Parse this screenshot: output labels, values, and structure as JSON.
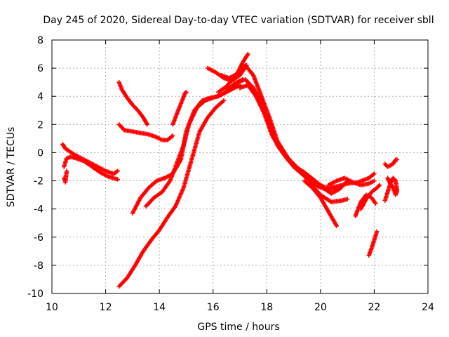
{
  "chart_data": {
    "type": "scatter",
    "title": "Day 245 of 2020, Sidereal Day-to-day VTEC variation (SDTVAR) for receiver sbll",
    "xlabel": "GPS time / hours",
    "ylabel": "SDTVAR / TECUs",
    "xlim": [
      10,
      24
    ],
    "ylim": [
      -10,
      8
    ],
    "xticks": [
      10,
      12,
      14,
      16,
      18,
      20,
      22,
      24
    ],
    "yticks": [
      -10,
      -8,
      -6,
      -4,
      -2,
      0,
      2,
      4,
      6,
      8
    ],
    "grid": true,
    "marker": "plus",
    "color": "#ff0000",
    "segments": [
      {
        "x": [
          10.4,
          10.5,
          10.8,
          11.2,
          11.6,
          12.0,
          12.3,
          12.45
        ],
        "y": [
          0.6,
          0.3,
          -0.1,
          -0.5,
          -0.9,
          -1.3,
          -1.5,
          -1.3
        ]
      },
      {
        "x": [
          10.45,
          10.55,
          10.7,
          10.9,
          11.2,
          11.5,
          11.8,
          12.1,
          12.45
        ],
        "y": [
          -1.0,
          -0.4,
          -0.3,
          -0.4,
          -0.6,
          -1.0,
          -1.4,
          -1.7,
          -1.9
        ]
      },
      {
        "x": [
          10.45,
          10.5,
          10.55
        ],
        "y": [
          -1.8,
          -2.1,
          -1.3
        ]
      },
      {
        "x": [
          12.5,
          12.6,
          12.8,
          13.0,
          13.2,
          13.4,
          13.55
        ],
        "y": [
          5.0,
          4.5,
          3.9,
          3.4,
          3.0,
          2.5,
          2.0
        ]
      },
      {
        "x": [
          12.5,
          12.7,
          13.0,
          13.3,
          13.6,
          13.9,
          14.1,
          14.3,
          14.5
        ],
        "y": [
          2.0,
          1.6,
          1.5,
          1.4,
          1.3,
          1.1,
          0.9,
          0.9,
          1.2
        ]
      },
      {
        "x": [
          12.5,
          12.8,
          13.1,
          13.4,
          13.7,
          14.0,
          14.3,
          14.6,
          14.9,
          15.2,
          15.5,
          15.8,
          16.1,
          16.4
        ],
        "y": [
          -9.5,
          -8.9,
          -8.0,
          -7.0,
          -6.2,
          -5.5,
          -4.6,
          -3.8,
          -2.5,
          -0.5,
          1.5,
          2.5,
          3.2,
          3.7
        ]
      },
      {
        "x": [
          13.0,
          13.3,
          13.6,
          13.9,
          14.2,
          14.5,
          14.8,
          15.0,
          15.3,
          15.6,
          15.9,
          16.2,
          16.6,
          17.0
        ],
        "y": [
          -4.3,
          -3.2,
          -2.5,
          -2.0,
          -1.8,
          -1.5,
          -0.5,
          1.5,
          3.0,
          3.7,
          3.9,
          4.0,
          4.4,
          4.8
        ]
      },
      {
        "x": [
          13.5,
          13.8,
          14.1,
          14.4,
          14.7,
          14.9,
          15.1,
          15.4,
          15.7,
          16.0,
          16.4,
          16.8,
          17.1
        ],
        "y": [
          -3.8,
          -3.2,
          -2.8,
          -2.0,
          -0.5,
          0.5,
          2.0,
          3.2,
          3.7,
          3.9,
          4.2,
          4.9,
          5.2
        ]
      },
      {
        "x": [
          14.5,
          14.7,
          14.85,
          14.95,
          15.0
        ],
        "y": [
          2.0,
          3.0,
          3.7,
          4.2,
          4.3
        ]
      },
      {
        "x": [
          15.8,
          16.1,
          16.4,
          16.7,
          17.0,
          17.25
        ],
        "y": [
          6.0,
          5.7,
          5.3,
          5.1,
          5.5,
          6.2
        ]
      },
      {
        "x": [
          16.3,
          16.6,
          16.9,
          17.1,
          17.3
        ],
        "y": [
          5.5,
          5.3,
          5.6,
          6.4,
          7.0
        ]
      },
      {
        "x": [
          16.2,
          16.5,
          16.8,
          17.0,
          17.2,
          17.5,
          17.8,
          18.1,
          18.4,
          18.8,
          19.2,
          19.6,
          19.9,
          20.2,
          20.6,
          21.0,
          21.4,
          21.8,
          22.0
        ],
        "y": [
          4.3,
          4.7,
          5.4,
          5.9,
          6.2,
          5.5,
          4.0,
          2.5,
          0.8,
          -0.4,
          -1.2,
          -1.8,
          -2.2,
          -2.5,
          -2.4,
          -2.2,
          -2.1,
          -1.8,
          -1.5
        ]
      },
      {
        "x": [
          16.5,
          16.9,
          17.2,
          17.5,
          17.8,
          18.1,
          18.4,
          18.7,
          19.0,
          19.3,
          19.6,
          19.9,
          20.2,
          20.5,
          20.7
        ],
        "y": [
          4.4,
          5.0,
          5.2,
          4.6,
          3.5,
          2.0,
          0.5,
          -0.3,
          -1.0,
          -1.5,
          -2.0,
          -2.4,
          -2.6,
          -2.6,
          -2.5
        ]
      },
      {
        "x": [
          17.0,
          17.3,
          17.6,
          17.9,
          18.2,
          18.6,
          19.0,
          19.4,
          19.8,
          20.1,
          20.4,
          20.7,
          21.0
        ],
        "y": [
          4.6,
          4.8,
          4.0,
          2.8,
          1.2,
          0.0,
          -0.9,
          -1.4,
          -2.0,
          -2.5,
          -2.9,
          -2.6,
          -2.0
        ]
      },
      {
        "x": [
          19.4,
          19.7,
          20.0,
          20.3,
          20.6
        ],
        "y": [
          -2.0,
          -2.5,
          -3.2,
          -4.2,
          -5.2
        ]
      },
      {
        "x": [
          19.6,
          20.0,
          20.4,
          20.8,
          21.0
        ],
        "y": [
          -2.2,
          -3.0,
          -3.5,
          -3.4,
          -3.3
        ]
      },
      {
        "x": [
          20.3,
          20.6,
          20.9,
          21.2,
          21.5,
          21.8,
          22.0
        ],
        "y": [
          -2.3,
          -2.0,
          -1.8,
          -2.1,
          -2.3,
          -2.2,
          -2.0
        ]
      },
      {
        "x": [
          21.5,
          21.7,
          21.9,
          22.1,
          22.2
        ],
        "y": [
          -4.0,
          -3.3,
          -2.8,
          -2.5,
          -2.3
        ]
      },
      {
        "x": [
          21.3,
          21.5,
          21.7,
          21.9,
          22.05
        ],
        "y": [
          -4.5,
          -3.5,
          -3.0,
          -3.2,
          -3.6
        ]
      },
      {
        "x": [
          21.8,
          21.9,
          22.0,
          22.1
        ],
        "y": [
          -7.3,
          -6.8,
          -6.2,
          -5.6
        ]
      },
      {
        "x": [
          22.4,
          22.5,
          22.6,
          22.7,
          22.8,
          22.85
        ],
        "y": [
          -3.4,
          -2.8,
          -2.2,
          -1.8,
          -2.0,
          -2.8
        ]
      },
      {
        "x": [
          22.4,
          22.5,
          22.6,
          22.7,
          22.8,
          22.85
        ],
        "y": [
          -0.8,
          -1.0,
          -0.9,
          -0.8,
          -0.5,
          -0.5
        ]
      },
      {
        "x": [
          22.5,
          22.6,
          22.7,
          22.8,
          22.85
        ],
        "y": [
          -1.8,
          -2.2,
          -2.5,
          -3.0,
          -2.6
        ]
      }
    ]
  }
}
